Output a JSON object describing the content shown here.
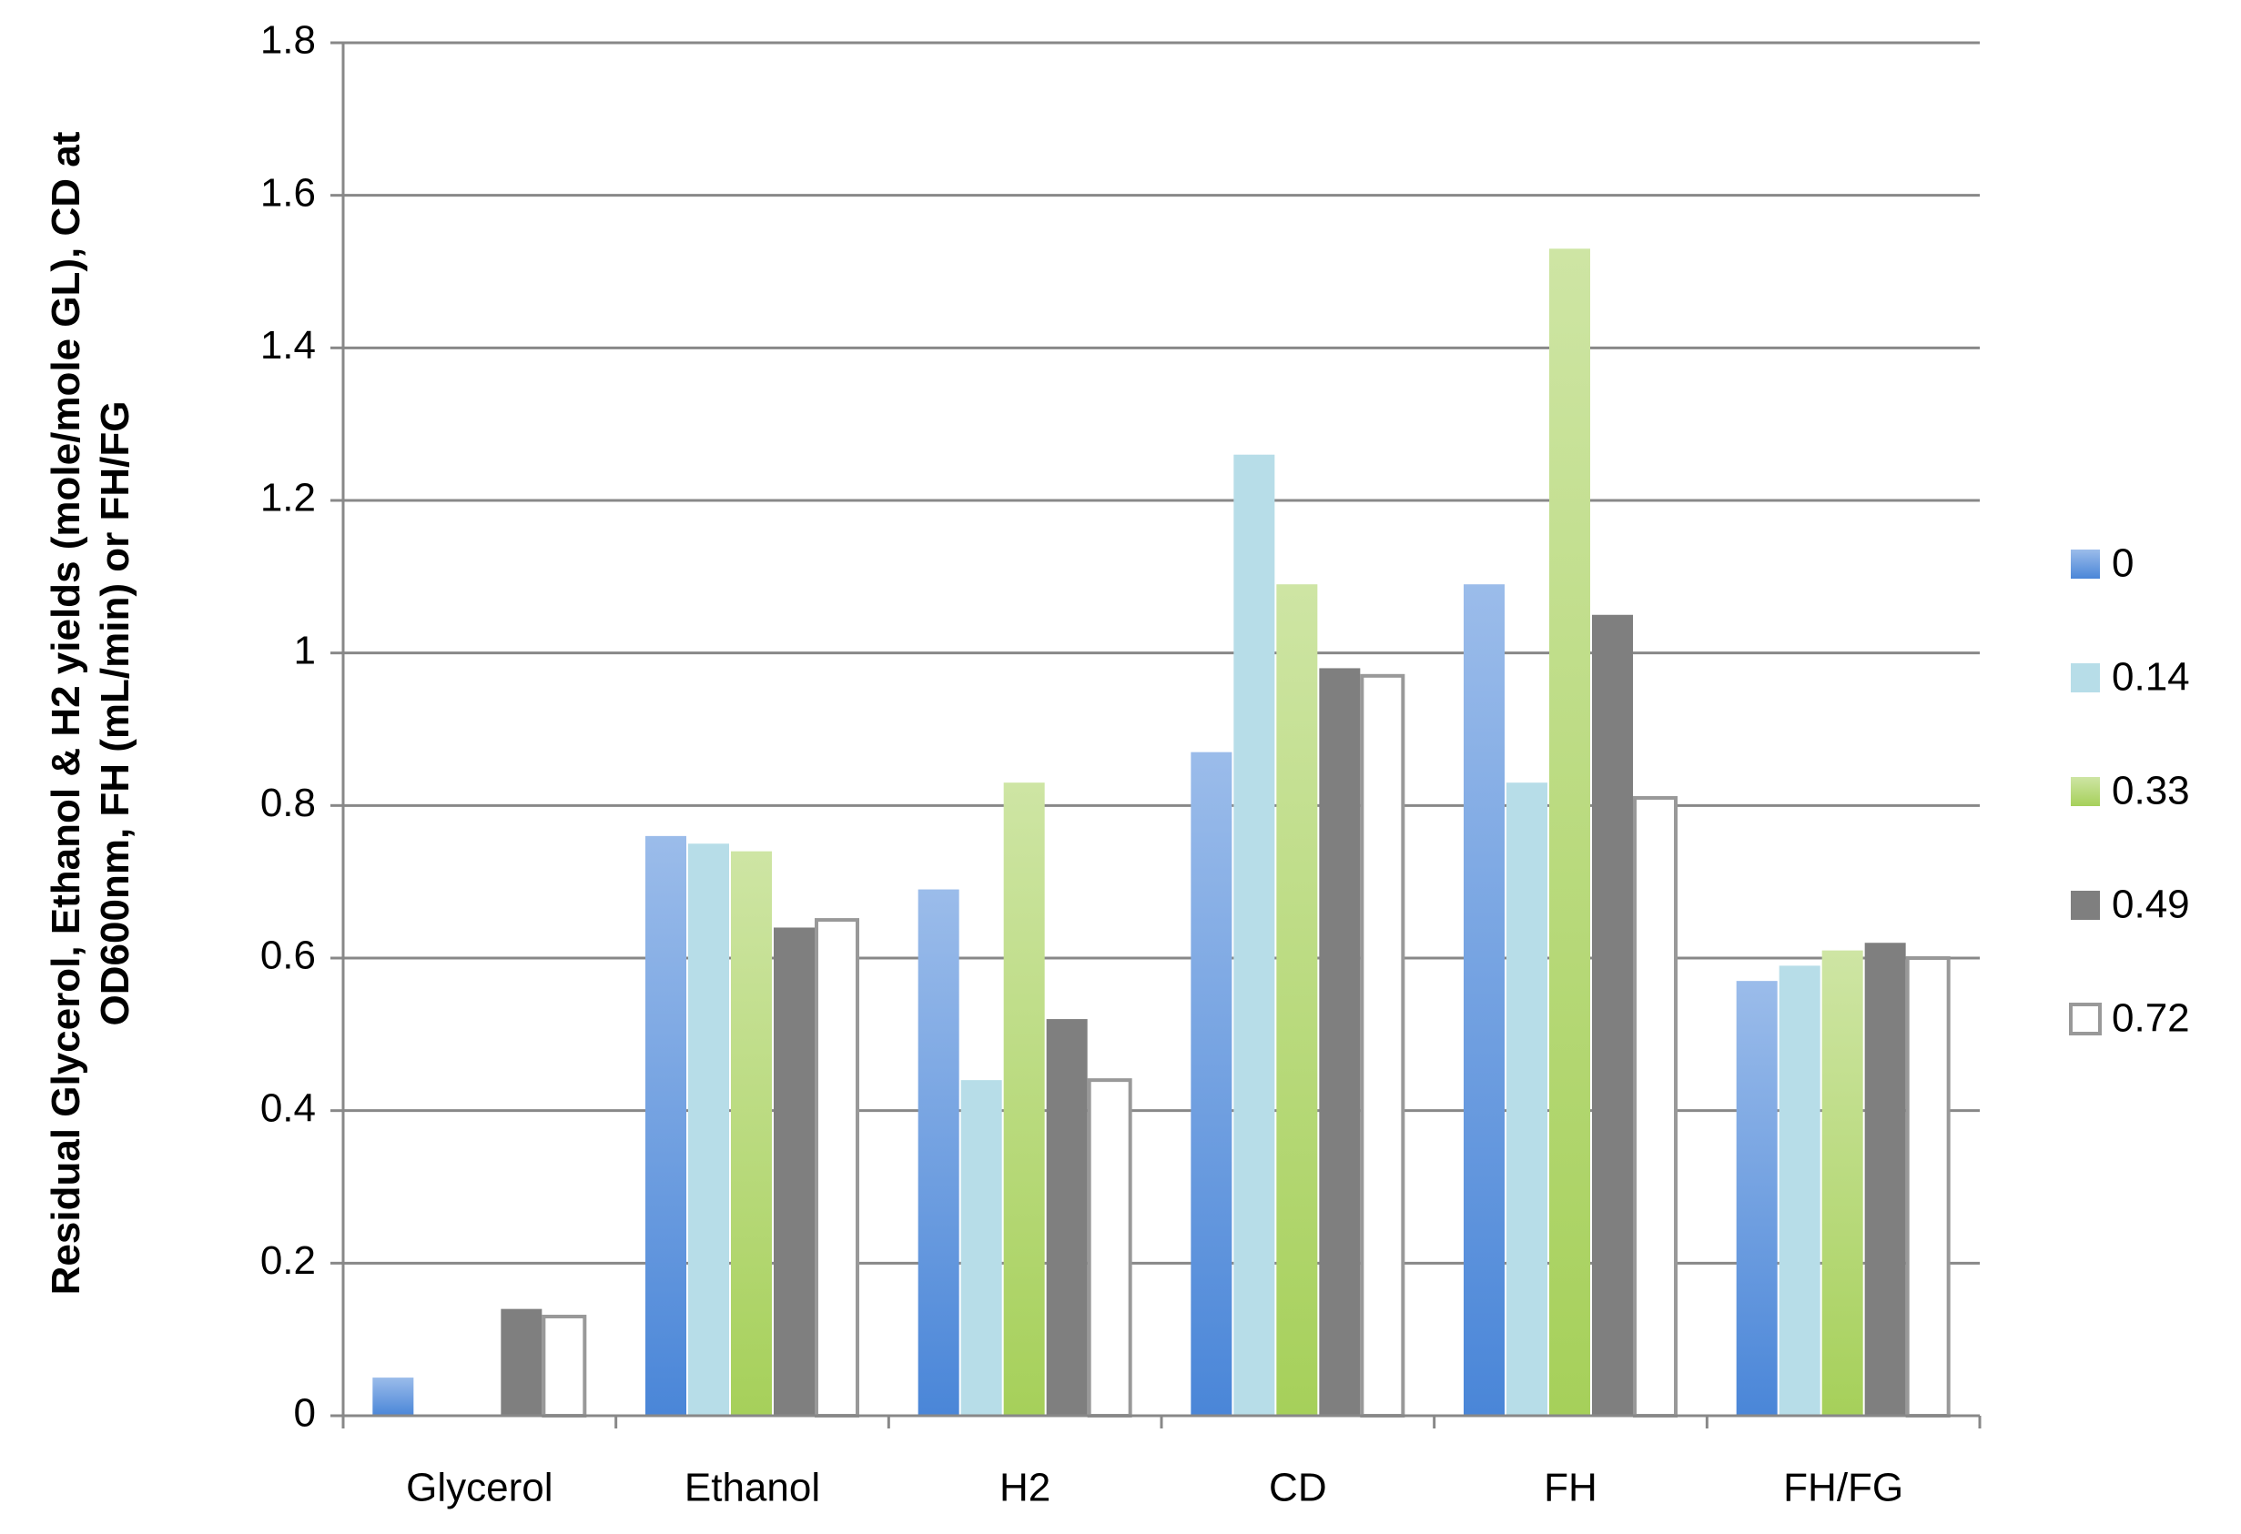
{
  "chart_data": {
    "type": "bar",
    "y_label": "Residual Glycerol, Ethanol & H2 yields (mole/mole GL), CD at OD600nm, FH (mL/min) or FH/FG",
    "categories": [
      "Glycerol",
      "Ethanol",
      "H2",
      "CD",
      "FH",
      "FH/FG"
    ],
    "series": [
      {
        "name": "0",
        "color": "#4a86d8",
        "values": [
          0.05,
          0.76,
          0.69,
          0.87,
          1.09,
          0.57
        ]
      },
      {
        "name": "0.14",
        "color": "#b7dde8",
        "values": [
          0,
          0.75,
          0.44,
          1.26,
          0.83,
          0.59
        ]
      },
      {
        "name": "0.33",
        "color": "#a6d05a",
        "values": [
          0,
          0.74,
          0.83,
          1.09,
          1.53,
          0.61
        ]
      },
      {
        "name": "0.49",
        "color": "#7f7f7f",
        "values": [
          0.14,
          0.64,
          0.52,
          0.98,
          1.05,
          0.62
        ]
      },
      {
        "name": "0.72",
        "color": "#ffffff",
        "values": [
          0.13,
          0.65,
          0.44,
          0.97,
          0.81,
          0.6
        ]
      }
    ],
    "ylim": [
      0,
      1.8
    ],
    "yticks": [
      0,
      0.2,
      0.4,
      0.6,
      0.8,
      1,
      1.2,
      1.4,
      1.6,
      1.8
    ],
    "grid": true,
    "legend": "right"
  }
}
